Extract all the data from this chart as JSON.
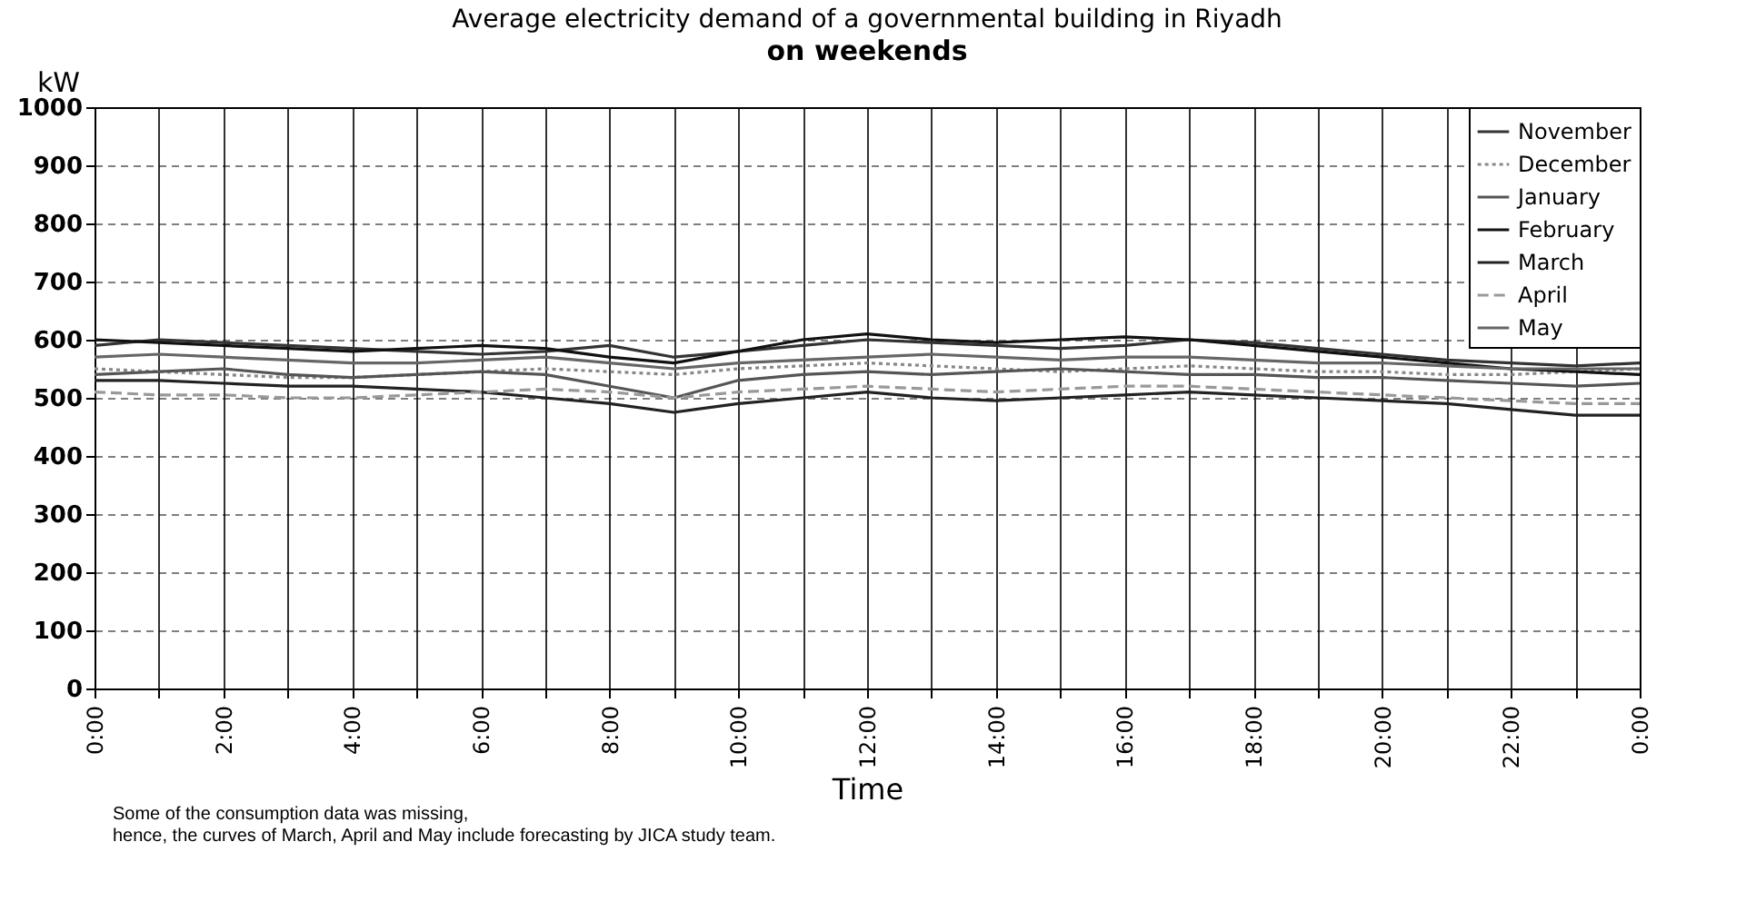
{
  "chart_data": {
    "type": "line",
    "title": "Average electricity demand of a governmental building in Riyadh",
    "subtitle": "on weekends",
    "xlabel": "Time",
    "ylabel": "kW",
    "annotations": [
      "Some of the consumption data was missing,",
      "hence, the curves of March, April and May include forecasting by JICA study team."
    ],
    "x": [
      0,
      1,
      2,
      3,
      4,
      5,
      6,
      7,
      8,
      9,
      10,
      11,
      12,
      13,
      14,
      15,
      16,
      17,
      18,
      19,
      20,
      21,
      22,
      23,
      24
    ],
    "series": [
      {
        "name": "November",
        "color": "#333333",
        "line_style": "solid",
        "values": [
          590,
          600,
          595,
          590,
          585,
          580,
          575,
          580,
          590,
          570,
          580,
          590,
          600,
          595,
          590,
          585,
          590,
          600,
          595,
          585,
          575,
          565,
          560,
          555,
          560
        ]
      },
      {
        "name": "December",
        "color": "#888888",
        "line_style": "dotted",
        "values": [
          550,
          545,
          540,
          535,
          535,
          540,
          545,
          550,
          545,
          540,
          550,
          555,
          560,
          555,
          550,
          545,
          550,
          555,
          550,
          545,
          545,
          540,
          540,
          545,
          550
        ]
      },
      {
        "name": "January",
        "color": "#555555",
        "line_style": "solid",
        "values": [
          540,
          545,
          550,
          540,
          535,
          540,
          545,
          540,
          520,
          500,
          530,
          540,
          545,
          540,
          545,
          550,
          545,
          540,
          540,
          535,
          535,
          530,
          525,
          520,
          525
        ]
      },
      {
        "name": "February",
        "color": "#111111",
        "line_style": "solid",
        "values": [
          600,
          595,
          590,
          585,
          580,
          585,
          590,
          585,
          570,
          560,
          580,
          600,
          610,
          600,
          595,
          600,
          605,
          600,
          590,
          580,
          570,
          560,
          550,
          545,
          540
        ]
      },
      {
        "name": "March",
        "color": "#222222",
        "line_style": "solid",
        "values": [
          530,
          530,
          525,
          520,
          520,
          515,
          510,
          500,
          490,
          475,
          490,
          500,
          510,
          500,
          495,
          500,
          505,
          510,
          505,
          500,
          495,
          490,
          480,
          470,
          470
        ]
      },
      {
        "name": "April",
        "color": "#999999",
        "line_style": "dashed",
        "values": [
          510,
          505,
          505,
          500,
          500,
          505,
          510,
          515,
          510,
          500,
          510,
          515,
          520,
          515,
          510,
          515,
          520,
          520,
          515,
          510,
          505,
          500,
          495,
          490,
          490
        ]
      },
      {
        "name": "May",
        "color": "#666666",
        "line_style": "solid",
        "values": [
          570,
          575,
          570,
          565,
          560,
          560,
          565,
          570,
          560,
          550,
          560,
          565,
          570,
          575,
          570,
          565,
          570,
          570,
          565,
          560,
          560,
          555,
          550,
          550,
          550
        ]
      }
    ],
    "xlim": [
      0,
      24
    ],
    "xticks": [
      {
        "value": 0,
        "label": "0:00"
      },
      {
        "value": 1,
        "label": null
      },
      {
        "value": 2,
        "label": "2:00"
      },
      {
        "value": 3,
        "label": null
      },
      {
        "value": 4,
        "label": "4:00"
      },
      {
        "value": 5,
        "label": null
      },
      {
        "value": 6,
        "label": "6:00"
      },
      {
        "value": 7,
        "label": null
      },
      {
        "value": 8,
        "label": "8:00"
      },
      {
        "value": 9,
        "label": null
      },
      {
        "value": 10,
        "label": "10:00"
      },
      {
        "value": 11,
        "label": null
      },
      {
        "value": 12,
        "label": "12:00"
      },
      {
        "value": 13,
        "label": null
      },
      {
        "value": 14,
        "label": "14:00"
      },
      {
        "value": 15,
        "label": null
      },
      {
        "value": 16,
        "label": "16:00"
      },
      {
        "value": 17,
        "label": null
      },
      {
        "value": 18,
        "label": "18:00"
      },
      {
        "value": 19,
        "label": null
      },
      {
        "value": 20,
        "label": "20:00"
      },
      {
        "value": 21,
        "label": null
      },
      {
        "value": 22,
        "label": "22:00"
      },
      {
        "value": 23,
        "label": null
      },
      {
        "value": 24,
        "label": "0:00"
      }
    ],
    "ylim": [
      0,
      1000
    ],
    "yticks": [
      0,
      100,
      200,
      300,
      400,
      500,
      600,
      700,
      800,
      900,
      1000
    ],
    "grid": true,
    "legend": "top right",
    "marker": "none"
  }
}
